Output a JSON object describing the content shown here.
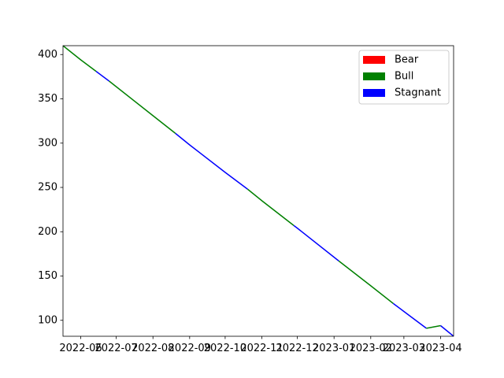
{
  "chart_data": {
    "type": "line",
    "title": "",
    "xlabel": "",
    "ylabel": "",
    "x_range": [
      "2022-05-17",
      "2023-04-12"
    ],
    "ylim": [
      82,
      410
    ],
    "x_ticks": [
      "2022-06",
      "2022-07",
      "2022-08",
      "2022-09",
      "2022-10",
      "2022-11",
      "2022-12",
      "2023-01",
      "2023-02",
      "2023-03",
      "2023-04"
    ],
    "y_ticks": [
      100,
      150,
      200,
      250,
      300,
      350,
      400
    ],
    "grid": false,
    "legend_position": "top-right",
    "legend": [
      {
        "name": "Bear",
        "color": "#ff0000"
      },
      {
        "name": "Bull",
        "color": "#008000"
      },
      {
        "name": "Stagnant",
        "color": "#0000ff"
      }
    ],
    "segments": [
      {
        "regime": "Bull",
        "color": "#008000",
        "points": [
          [
            "2022-05-17",
            410
          ],
          [
            "2022-06-01",
            394
          ],
          [
            "2022-06-14",
            381
          ]
        ]
      },
      {
        "regime": "Stagnant",
        "color": "#0000ff",
        "points": [
          [
            "2022-06-14",
            381
          ],
          [
            "2022-06-25",
            370
          ]
        ]
      },
      {
        "regime": "Bull",
        "color": "#008000",
        "points": [
          [
            "2022-06-25",
            370
          ],
          [
            "2022-08-01",
            331
          ],
          [
            "2022-08-20",
            311
          ]
        ]
      },
      {
        "regime": "Stagnant",
        "color": "#0000ff",
        "points": [
          [
            "2022-08-20",
            311
          ],
          [
            "2022-09-01",
            298
          ],
          [
            "2022-10-01",
            267
          ],
          [
            "2022-10-20",
            248
          ]
        ]
      },
      {
        "regime": "Bull",
        "color": "#008000",
        "points": [
          [
            "2022-10-20",
            248
          ],
          [
            "2022-11-01",
            235
          ],
          [
            "2022-11-28",
            207
          ]
        ]
      },
      {
        "regime": "Stagnant",
        "color": "#0000ff",
        "points": [
          [
            "2022-11-28",
            207
          ],
          [
            "2022-12-01",
            204
          ],
          [
            "2023-01-05",
            167
          ]
        ]
      },
      {
        "regime": "Bull",
        "color": "#008000",
        "points": [
          [
            "2023-01-05",
            167
          ],
          [
            "2023-02-01",
            139
          ],
          [
            "2023-02-20",
            119
          ]
        ]
      },
      {
        "regime": "Stagnant",
        "color": "#0000ff",
        "points": [
          [
            "2023-02-20",
            119
          ],
          [
            "2023-03-01",
            110
          ],
          [
            "2023-03-20",
            91
          ]
        ]
      },
      {
        "regime": "Bull",
        "color": "#008000",
        "points": [
          [
            "2023-03-20",
            91
          ],
          [
            "2023-04-01",
            94
          ]
        ]
      },
      {
        "regime": "Stagnant",
        "color": "#0000ff",
        "points": [
          [
            "2023-04-01",
            94
          ],
          [
            "2023-04-12",
            82
          ]
        ]
      }
    ]
  }
}
